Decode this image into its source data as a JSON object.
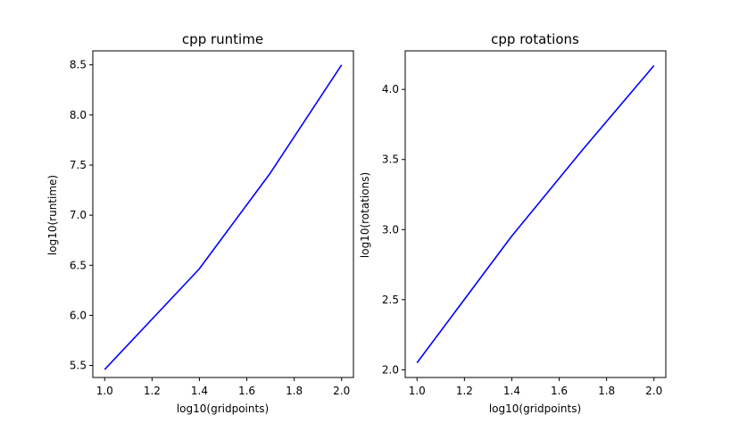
{
  "chart_data": [
    {
      "type": "line",
      "title": "cpp runtime",
      "xlabel": "log10(gridpoints)",
      "ylabel": "log10(runtime)",
      "xlim": [
        0.95,
        2.05
      ],
      "ylim": [
        5.38,
        8.64
      ],
      "xticks": [
        "1.0",
        "1.2",
        "1.4",
        "1.6",
        "1.8",
        "2.0"
      ],
      "yticks": [
        "5.5",
        "6.0",
        "6.5",
        "7.0",
        "7.5",
        "8.0",
        "8.5"
      ],
      "grid": false,
      "series": [
        {
          "color": "#0000ff",
          "x": [
            1.0,
            1.398,
            1.699,
            2.0
          ],
          "y": [
            5.46,
            6.46,
            7.42,
            8.5
          ]
        }
      ]
    },
    {
      "type": "line",
      "title": "cpp rotations",
      "xlabel": "log10(gridpoints)",
      "ylabel": "log10(rotations)",
      "xlim": [
        0.95,
        2.05
      ],
      "ylim": [
        1.945,
        4.275
      ],
      "xticks": [
        "1.0",
        "1.2",
        "1.4",
        "1.6",
        "1.8",
        "2.0"
      ],
      "yticks": [
        "2.0",
        "2.5",
        "3.0",
        "3.5",
        "4.0"
      ],
      "grid": false,
      "series": [
        {
          "color": "#0000ff",
          "x": [
            1.0,
            1.398,
            1.699,
            2.0
          ],
          "y": [
            2.05,
            2.95,
            3.57,
            4.17
          ]
        }
      ]
    }
  ]
}
